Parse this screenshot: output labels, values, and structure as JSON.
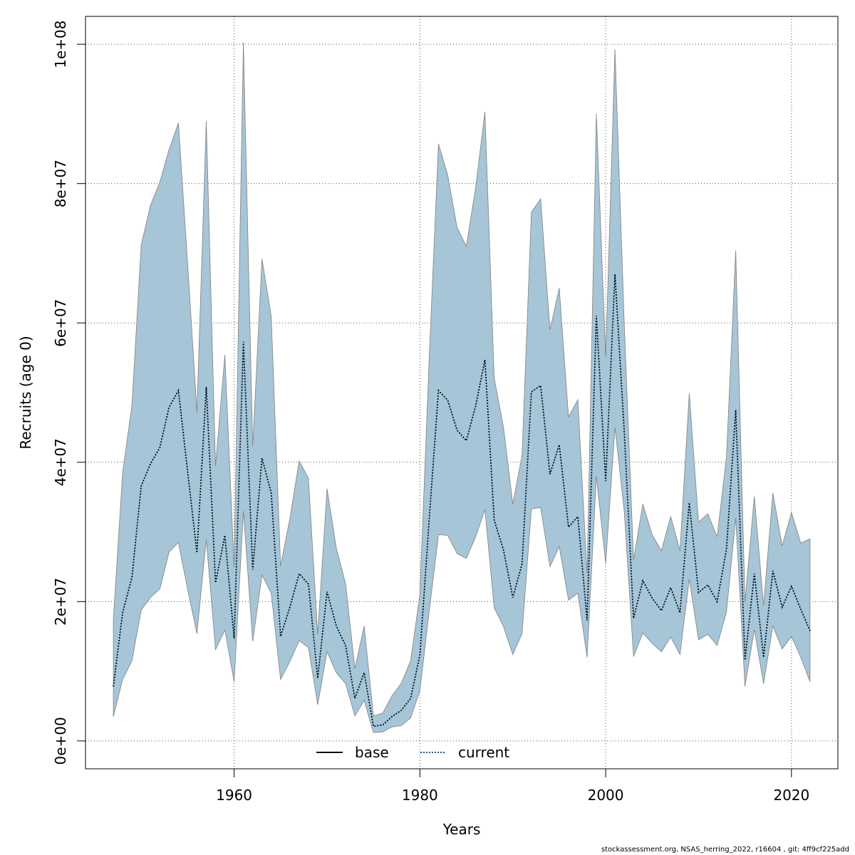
{
  "chart_data": {
    "type": "area",
    "xlabel": "Years",
    "ylabel": "Recruits (age 0)",
    "xlim": [
      1944,
      2025
    ],
    "ylim": [
      -4000000,
      104000000
    ],
    "x_ticks": [
      1960,
      1980,
      2000,
      2020
    ],
    "x_tick_labels": [
      "1960",
      "1980",
      "2000",
      "2020"
    ],
    "y_ticks": [
      0,
      20000000,
      40000000,
      60000000,
      80000000,
      100000000
    ],
    "y_tick_labels": [
      "0e+00",
      "2e+07",
      "4e+07",
      "6e+07",
      "8e+07",
      "1e+08"
    ],
    "grid": true,
    "legend_position": "bottom-center",
    "colors": {
      "band": "#a6c5d6",
      "band_edge": "#808080",
      "base": "#000000",
      "current": "#1f5a8a"
    },
    "x": [
      1947,
      1948,
      1949,
      1950,
      1951,
      1952,
      1953,
      1954,
      1955,
      1956,
      1957,
      1958,
      1959,
      1960,
      1961,
      1962,
      1963,
      1964,
      1965,
      1966,
      1967,
      1968,
      1969,
      1970,
      1971,
      1972,
      1973,
      1974,
      1975,
      1976,
      1977,
      1978,
      1979,
      1980,
      1981,
      1982,
      1983,
      1984,
      1985,
      1986,
      1987,
      1988,
      1989,
      1990,
      1991,
      1992,
      1993,
      1994,
      1995,
      1996,
      1997,
      1998,
      1999,
      2000,
      2001,
      2002,
      2003,
      2004,
      2005,
      2006,
      2007,
      2008,
      2009,
      2010,
      2011,
      2012,
      2013,
      2014,
      2015,
      2016,
      2017,
      2018,
      2019,
      2020,
      2021,
      2022
    ],
    "upper": [
      17500000,
      38500000,
      48200000,
      71200000,
      76900000,
      80200000,
      84900000,
      88700000,
      68400000,
      47200000,
      89000000,
      39500000,
      55400000,
      24900000,
      100300000,
      42300000,
      69200000,
      60900000,
      25100000,
      31900000,
      40200000,
      37700000,
      15300000,
      36200000,
      27700000,
      22600000,
      10400000,
      16500000,
      3600000,
      4000000,
      6500000,
      8300000,
      11500000,
      21000000,
      55000000,
      85700000,
      81200000,
      73700000,
      71000000,
      79500000,
      90300000,
      52100000,
      45000000,
      34000000,
      41000000,
      75900000,
      77800000,
      59000000,
      65000000,
      46500000,
      49000000,
      24000000,
      90000000,
      55000000,
      99300000,
      60000000,
      26000000,
      34000000,
      29600000,
      27300000,
      32200000,
      27300000,
      49900000,
      31400000,
      32600000,
      29300000,
      40800000,
      70400000,
      19900000,
      35100000,
      19400000,
      35600000,
      28000000,
      32800000,
      28400000,
      29000000
    ],
    "lower": [
      3500000,
      8800000,
      11500000,
      18800000,
      20600000,
      21800000,
      27100000,
      28500000,
      21700000,
      15400000,
      28900000,
      13100000,
      15900000,
      8500000,
      33000000,
      14300000,
      23800000,
      21200000,
      8800000,
      11400000,
      14400000,
      13400000,
      5200000,
      12800000,
      9800000,
      8200000,
      3600000,
      5800000,
      1200000,
      1300000,
      2000000,
      2200000,
      3300000,
      7200000,
      18600000,
      29600000,
      29500000,
      26900000,
      26200000,
      29300000,
      33200000,
      19100000,
      16400000,
      12400000,
      15400000,
      33300000,
      33500000,
      25000000,
      27900000,
      20200000,
      21200000,
      12000000,
      38000000,
      25500000,
      45000000,
      33000000,
      12100000,
      15500000,
      14000000,
      12800000,
      14900000,
      12400000,
      23200000,
      14500000,
      15300000,
      13700000,
      18500000,
      32000000,
      7800000,
      16000000,
      8200000,
      16500000,
      13200000,
      15000000,
      12000000,
      8500000
    ],
    "series": [
      {
        "name": "base",
        "values": [
          7800000,
          18400000,
          23500000,
          36600000,
          39800000,
          42100000,
          47900000,
          50300000,
          38600000,
          27000000,
          50800000,
          22700000,
          29500000,
          14700000,
          57300000,
          24600000,
          40600000,
          35600000,
          15000000,
          19200000,
          24000000,
          22500000,
          9000000,
          21400000,
          16500000,
          13700000,
          6100000,
          9800000,
          2100000,
          2300000,
          3500000,
          4400000,
          6100000,
          12300000,
          31800000,
          50300000,
          48900000,
          44600000,
          43100000,
          48100000,
          54700000,
          31700000,
          27400000,
          20600000,
          25400000,
          50100000,
          51000000,
          38300000,
          42500000,
          30700000,
          32200000,
          17300000,
          61000000,
          37300000,
          67000000,
          44500000,
          17600000,
          23000000,
          20500000,
          18700000,
          22000000,
          18400000,
          34200000,
          21300000,
          22400000,
          20000000,
          27500000,
          47500000,
          11600000,
          24000000,
          12000000,
          24400000,
          19200000,
          22200000,
          18900000,
          15800000
        ]
      },
      {
        "name": "current",
        "values": [
          7800000,
          18400000,
          23500000,
          36600000,
          39800000,
          42100000,
          47900000,
          50300000,
          38600000,
          27000000,
          50800000,
          22700000,
          29500000,
          14700000,
          57300000,
          24600000,
          40600000,
          35600000,
          15000000,
          19200000,
          24000000,
          22500000,
          9000000,
          21400000,
          16500000,
          13700000,
          6100000,
          9800000,
          2100000,
          2300000,
          3500000,
          4400000,
          6100000,
          12300000,
          31800000,
          50300000,
          48900000,
          44600000,
          43100000,
          48100000,
          54700000,
          31700000,
          27400000,
          20600000,
          25400000,
          50100000,
          51000000,
          38300000,
          42500000,
          30700000,
          32200000,
          17300000,
          61000000,
          37300000,
          67000000,
          44500000,
          17600000,
          23000000,
          20500000,
          18700000,
          22000000,
          18400000,
          34200000,
          21300000,
          22400000,
          20000000,
          27500000,
          47500000,
          11600000,
          24000000,
          12000000,
          24400000,
          19200000,
          22200000,
          18900000,
          15800000
        ]
      }
    ],
    "legend": [
      "base",
      "current"
    ]
  },
  "footer": "stockassessment.org, NSAS_herring_2022, r16604 , git: 4ff9cf225add"
}
